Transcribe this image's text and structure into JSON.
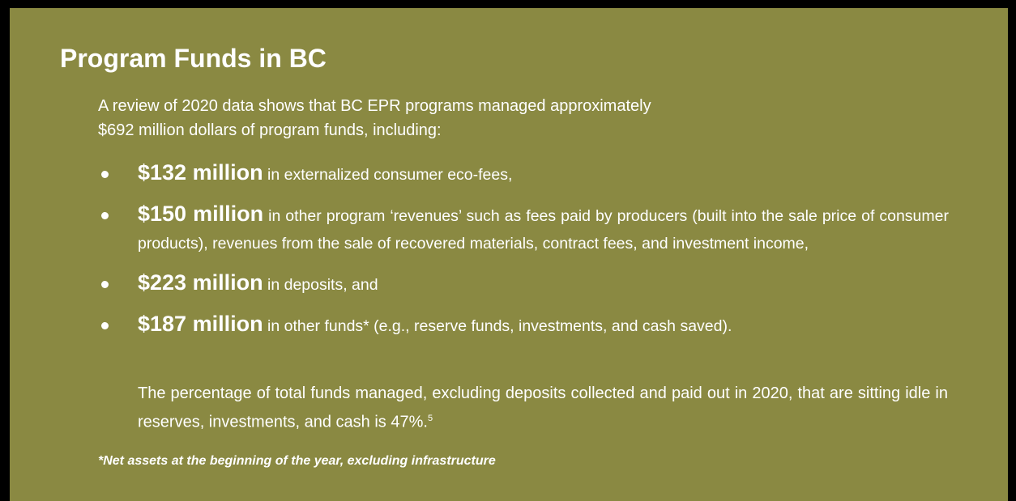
{
  "title": "Program Funds in BC",
  "intro": [
    "A review of 2020 data shows that BC EPR programs managed approximately",
    "$692 million dollars of program funds, including:"
  ],
  "bullets": [
    {
      "amount": "$132 million",
      "text": "in externalized consumer eco-fees,"
    },
    {
      "amount": "$150 million",
      "text": "in other program ‘revenues’ such as fees paid by producers (built into the sale price of consumer products), revenues from the sale of recovered materials, contract fees, and investment income,"
    },
    {
      "amount": "$223 million",
      "text": "in deposits, and"
    },
    {
      "amount": "$187 million",
      "text": "in other funds* (e.g., reserve funds, investments, and cash saved)."
    }
  ],
  "closing": {
    "text": "The percentage of total funds managed, excluding deposits collected and paid out in 2020, that are sitting idle in reserves, investments, and cash is 47%.",
    "footnote_ref": "5"
  },
  "footnote": "*Net assets at the beginning of the year, excluding infrastructure"
}
